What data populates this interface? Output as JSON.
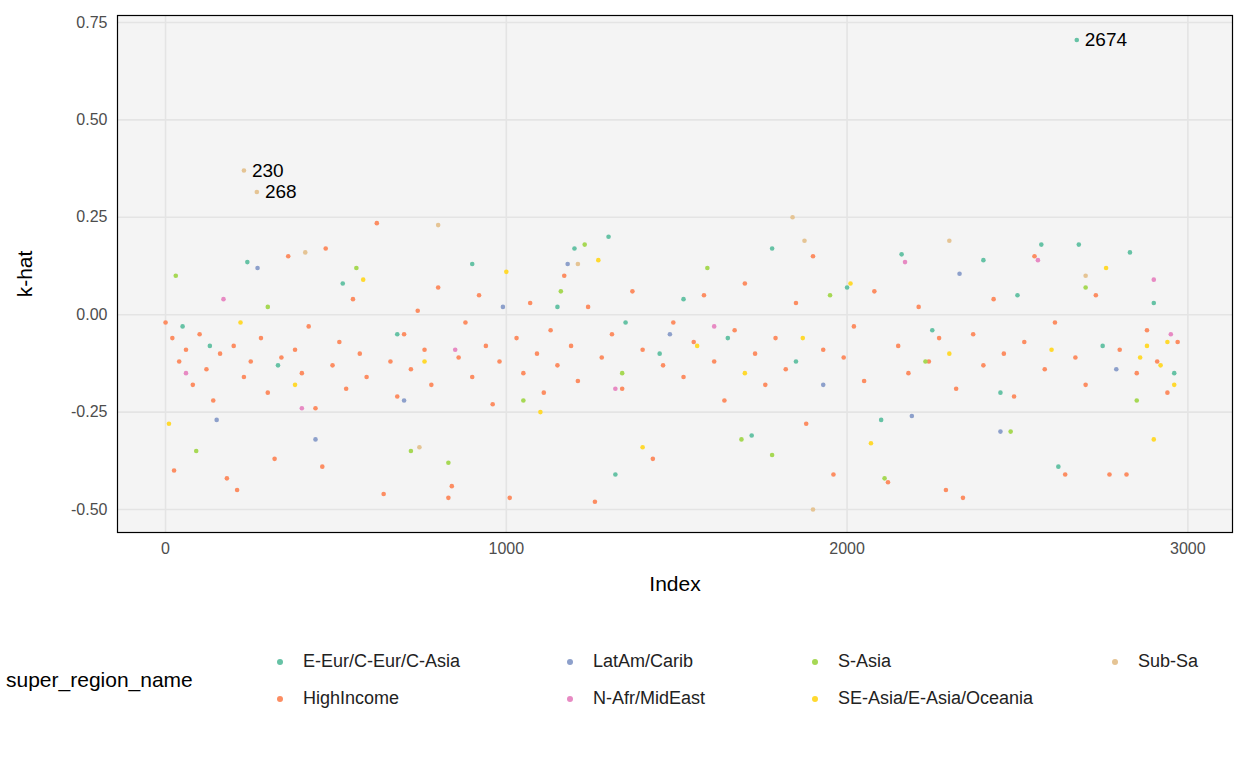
{
  "chart_data": {
    "type": "scatter",
    "x_label": "Index",
    "y_label": "k-hat",
    "legend_title": "super_region_name",
    "legend": "bottom",
    "grid": true,
    "xlim": [
      -141,
      3131
    ],
    "ylim": [
      -0.559,
      0.768
    ],
    "xticks": [
      0,
      1000,
      2000,
      3000
    ],
    "yticks": [
      {
        "value": -0.5,
        "label": "-0.50"
      },
      {
        "value": -0.25,
        "label": "-0.25"
      },
      {
        "value": 0,
        "label": "0.00"
      },
      {
        "value": 0.25,
        "label": "0.25"
      },
      {
        "value": 0.5,
        "label": "0.50"
      },
      {
        "value": 0.75,
        "label": "0.75"
      }
    ],
    "annotations": [
      {
        "text": "230",
        "x": 230,
        "y": 0.37
      },
      {
        "text": "268",
        "x": 268,
        "y": 0.315
      },
      {
        "text": "2674",
        "x": 2674,
        "y": 0.705
      }
    ],
    "series": [
      {
        "name": "E-Eur/C-Eur/C-Asia",
        "color": "#66c2a5",
        "x": [
          50,
          130,
          240,
          330,
          520,
          680,
          900,
          1150,
          1200,
          1300,
          1320,
          1350,
          1450,
          1520,
          1650,
          1720,
          1780,
          1850,
          2000,
          2100,
          2160,
          2250,
          2400,
          2450,
          2500,
          2570,
          2620,
          2674,
          2680,
          2750,
          2830,
          2900,
          2960
        ],
        "values": [
          -0.03,
          -0.08,
          0.135,
          -0.13,
          0.08,
          -0.05,
          0.13,
          0.02,
          0.17,
          0.2,
          -0.41,
          -0.02,
          -0.1,
          0.04,
          -0.06,
          -0.31,
          0.17,
          -0.12,
          0.07,
          -0.27,
          0.155,
          -0.04,
          0.14,
          -0.2,
          0.05,
          0.18,
          -0.39,
          0.705,
          0.18,
          -0.08,
          0.16,
          0.03,
          -0.15
        ]
      },
      {
        "name": "HighIncome",
        "color": "#fc8d62",
        "x": [
          0,
          20,
          25,
          40,
          60,
          80,
          100,
          120,
          140,
          160,
          180,
          200,
          210,
          230,
          250,
          280,
          300,
          320,
          340,
          360,
          380,
          400,
          420,
          440,
          460,
          470,
          490,
          510,
          530,
          550,
          570,
          590,
          620,
          640,
          660,
          680,
          700,
          720,
          740,
          760,
          780,
          800,
          830,
          840,
          860,
          880,
          900,
          920,
          940,
          960,
          980,
          1010,
          1030,
          1050,
          1070,
          1090,
          1110,
          1130,
          1150,
          1170,
          1190,
          1210,
          1240,
          1260,
          1280,
          1310,
          1340,
          1370,
          1400,
          1430,
          1460,
          1490,
          1520,
          1550,
          1580,
          1610,
          1640,
          1670,
          1700,
          1730,
          1760,
          1790,
          1820,
          1850,
          1880,
          1900,
          1930,
          1960,
          1990,
          2020,
          2050,
          2080,
          2120,
          2150,
          2180,
          2210,
          2240,
          2270,
          2290,
          2320,
          2340,
          2370,
          2400,
          2430,
          2460,
          2490,
          2520,
          2550,
          2580,
          2610,
          2640,
          2670,
          2700,
          2730,
          2770,
          2800,
          2820,
          2850,
          2880,
          2910,
          2940,
          2970
        ],
        "values": [
          -0.02,
          -0.06,
          -0.4,
          -0.12,
          -0.09,
          -0.18,
          -0.05,
          -0.14,
          -0.22,
          -0.1,
          -0.42,
          -0.08,
          -0.45,
          -0.16,
          -0.12,
          -0.06,
          -0.2,
          -0.37,
          -0.11,
          0.15,
          -0.09,
          -0.15,
          -0.03,
          -0.24,
          -0.39,
          0.17,
          -0.13,
          -0.07,
          -0.19,
          0.04,
          -0.1,
          -0.16,
          0.235,
          -0.46,
          -0.12,
          -0.21,
          -0.05,
          -0.14,
          0.01,
          -0.09,
          -0.18,
          0.07,
          -0.47,
          -0.44,
          -0.11,
          -0.02,
          -0.16,
          0.05,
          -0.08,
          -0.23,
          -0.12,
          -0.47,
          -0.06,
          -0.15,
          0.03,
          -0.1,
          -0.2,
          -0.04,
          -0.13,
          0.1,
          -0.08,
          -0.17,
          0.02,
          -0.48,
          -0.11,
          -0.05,
          -0.19,
          0.06,
          -0.09,
          -0.37,
          -0.13,
          -0.02,
          -0.16,
          -0.07,
          0.05,
          -0.12,
          -0.22,
          -0.04,
          0.08,
          -0.1,
          -0.18,
          -0.06,
          -0.14,
          0.03,
          -0.28,
          0.15,
          -0.09,
          -0.41,
          -0.11,
          -0.03,
          -0.17,
          0.06,
          -0.43,
          -0.08,
          -0.15,
          0.02,
          -0.12,
          -0.06,
          -0.45,
          -0.19,
          -0.47,
          -0.05,
          -0.13,
          0.04,
          -0.1,
          -0.21,
          -0.07,
          0.15,
          -0.14,
          -0.02,
          -0.41,
          -0.11,
          -0.18,
          0.05,
          -0.41,
          -0.09,
          -0.41,
          -0.15,
          -0.04,
          -0.12,
          -0.2,
          -0.07
        ]
      },
      {
        "name": "LatAm/Carib",
        "color": "#8da0cb",
        "x": [
          150,
          270,
          440,
          700,
          990,
          1180,
          1480,
          1930,
          2190,
          2330,
          2450,
          2790
        ],
        "values": [
          -0.27,
          0.12,
          -0.32,
          -0.22,
          0.02,
          0.13,
          -0.05,
          -0.18,
          -0.26,
          0.105,
          -0.3,
          -0.14
        ]
      },
      {
        "name": "N-Afr/MidEast",
        "color": "#e78ac3",
        "x": [
          60,
          170,
          400,
          850,
          1320,
          1610,
          2170,
          2560,
          2900,
          2950
        ],
        "values": [
          -0.15,
          0.04,
          -0.24,
          -0.09,
          -0.19,
          -0.03,
          0.135,
          0.14,
          0.09,
          -0.05
        ]
      },
      {
        "name": "S-Asia",
        "color": "#a6d854",
        "x": [
          30,
          90,
          300,
          560,
          720,
          830,
          1050,
          1160,
          1230,
          1340,
          1590,
          1690,
          1780,
          1950,
          2110,
          2230,
          2480,
          2700,
          2850
        ],
        "values": [
          0.1,
          -0.35,
          0.02,
          0.12,
          -0.35,
          -0.38,
          -0.22,
          0.06,
          0.18,
          -0.15,
          0.12,
          -0.32,
          -0.36,
          0.05,
          -0.42,
          -0.12,
          -0.3,
          0.07,
          -0.22
        ]
      },
      {
        "name": "SE-Asia/E-Asia/Oceania",
        "color": "#ffd92f",
        "x": [
          10,
          220,
          380,
          580,
          760,
          1000,
          1100,
          1270,
          1400,
          1560,
          1700,
          1870,
          2010,
          2070,
          2300,
          2600,
          2760,
          2860,
          2880,
          2900,
          2920,
          2940,
          2960
        ],
        "values": [
          -0.28,
          -0.02,
          -0.18,
          0.09,
          -0.12,
          0.11,
          -0.25,
          0.14,
          -0.34,
          -0.08,
          -0.15,
          -0.06,
          0.08,
          -0.33,
          -0.1,
          -0.09,
          0.12,
          -0.11,
          -0.08,
          -0.32,
          -0.13,
          -0.07,
          -0.18
        ]
      },
      {
        "name": "Sub-Sa",
        "color": "#e5c494",
        "x": [
          230,
          268,
          410,
          745,
          800,
          1210,
          1840,
          1875,
          1900,
          2300,
          2700
        ],
        "values": [
          0.37,
          0.315,
          0.16,
          -0.34,
          0.23,
          0.13,
          0.25,
          0.19,
          -0.5,
          0.19,
          0.1
        ]
      }
    ]
  }
}
